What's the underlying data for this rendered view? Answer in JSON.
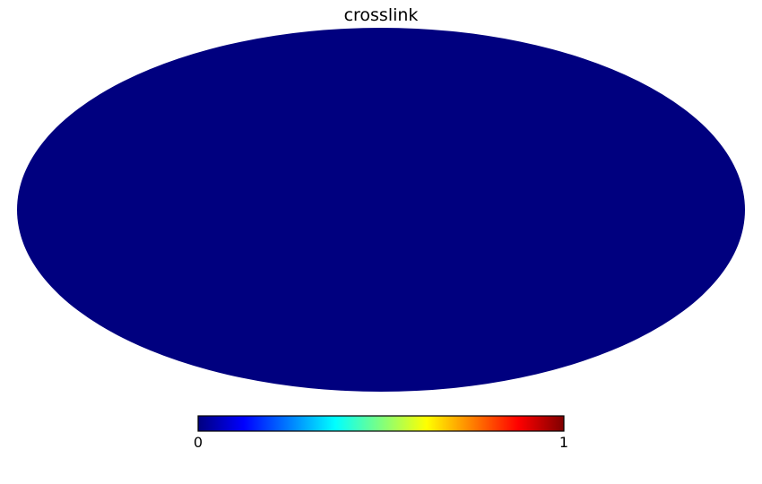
{
  "map": {
    "title": "crosslink",
    "projection": "mollweide",
    "map_color": "#00007f"
  },
  "colorbar": {
    "colormap": "jet",
    "min_label": "0",
    "max_label": "1",
    "stops": [
      "#00007f",
      "#0000ff",
      "#007fff",
      "#00ffff",
      "#7fff7f",
      "#ffff00",
      "#ff7f00",
      "#ff0000",
      "#7f0000"
    ]
  }
}
